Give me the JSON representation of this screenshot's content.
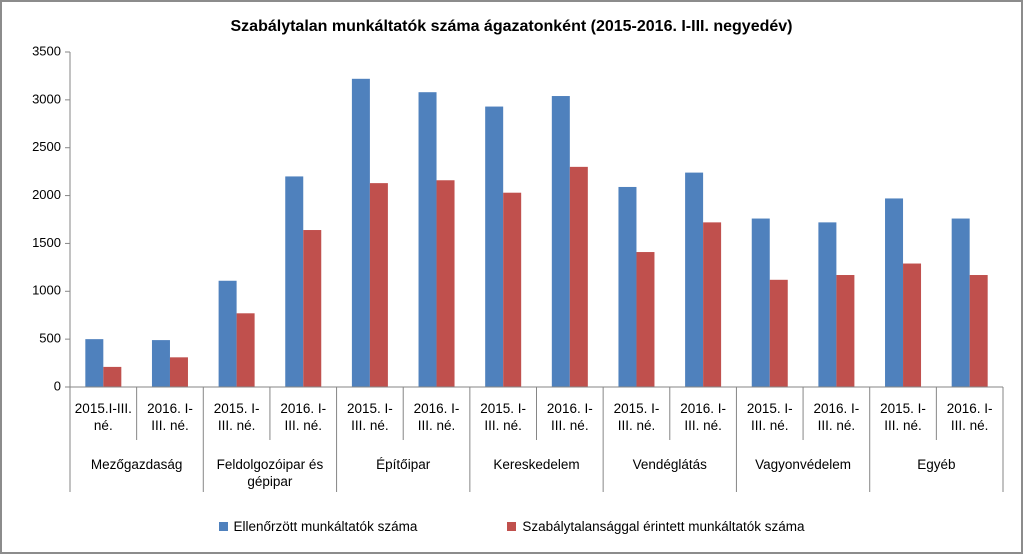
{
  "chart_data": {
    "type": "bar",
    "title": "Szabálytalan munkáltatók száma ágazatonként (2015-2016. I-III. negyedév)",
    "categories": [
      "2015.I-III. né.",
      "2016. I-III. né.",
      "2015. I-III. né.",
      "2016. I-III. né.",
      "2015. I-III. né.",
      "2016. I-III. né.",
      "2015. I-III. né.",
      "2016. I-III. né.",
      "2015. I-III. né.",
      "2016. I-III. né.",
      "2015. I-III. né.",
      "2016. I-III. né.",
      "2015. I-III. né.",
      "2016. I-III. né."
    ],
    "groups": [
      "Mezőgazdaság",
      "Feldolgozóipar és gépipar",
      "Építőipar",
      "Kereskedelem",
      "Vendéglátás",
      "Vagyonvédelem",
      "Egyéb"
    ],
    "series": [
      {
        "name": "Ellenőrzött munkáltatók száma",
        "color": "#4f81bd",
        "values": [
          500,
          490,
          1110,
          2200,
          3220,
          3080,
          2930,
          3040,
          2090,
          2240,
          1760,
          1720,
          1970,
          1760
        ]
      },
      {
        "name": "Szabálytalansággal érintett munkáltatók száma",
        "color": "#c0504d",
        "values": [
          210,
          310,
          770,
          1640,
          2130,
          2160,
          2030,
          2300,
          1410,
          1720,
          1120,
          1170,
          1290,
          1170
        ]
      }
    ],
    "ylim": [
      0,
      3500
    ],
    "yticks": [
      0,
      500,
      1000,
      1500,
      2000,
      2500,
      3000,
      3500
    ],
    "grid": false,
    "legend": "bottom"
  }
}
